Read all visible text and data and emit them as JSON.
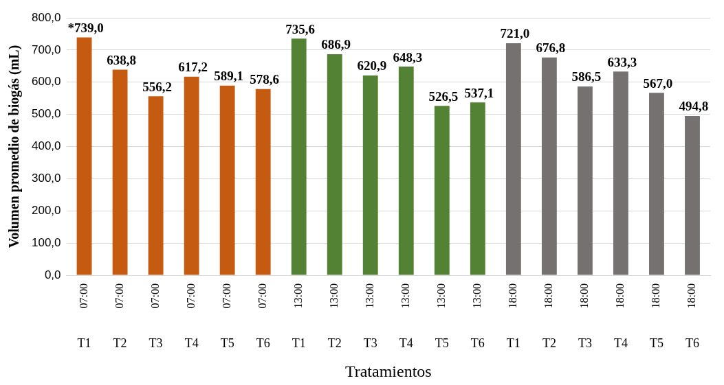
{
  "chart_data": {
    "type": "bar",
    "ylabel": "Volumen promedio de biogás (mL)",
    "xlabel": "Tratamientos",
    "categories": [
      "07:00\nT1",
      "07:00\nT2",
      "07:00\nT3",
      "07:00\nT4",
      "07:00\nT5",
      "07:00\nT6",
      "13:00\nT1",
      "13:00\nT2",
      "13:00\nT3",
      "13:00\nT4",
      "13:00\nT5",
      "13:00\nT6",
      "18:00\nT1",
      "18:00\nT2",
      "18:00\nT3",
      "18:00\nT4",
      "18:00\nT5",
      "18:00\nT6"
    ],
    "values": [
      739.0,
      638.8,
      556.2,
      617.2,
      589.1,
      578.6,
      735.6,
      686.9,
      620.9,
      648.3,
      526.5,
      537.1,
      721.0,
      676.8,
      586.5,
      633.3,
      567.0,
      494.8
    ],
    "value_labels": [
      "*739,0",
      "638,8",
      "556,2",
      "617,2",
      "589,1",
      "578,6",
      "735,6",
      "686,9",
      "620,9",
      "648,3",
      "526,5",
      "537,1",
      "721,0",
      "676,8",
      "586,5",
      "633,3",
      "567,0",
      "494,8"
    ],
    "colors": [
      "#c55a11",
      "#c55a11",
      "#c55a11",
      "#c55a11",
      "#c55a11",
      "#c55a11",
      "#548235",
      "#548235",
      "#548235",
      "#548235",
      "#548235",
      "#548235",
      "#767171",
      "#767171",
      "#767171",
      "#767171",
      "#767171",
      "#767171"
    ],
    "ylim": [
      0,
      800
    ],
    "yticks": [
      {
        "value": 0,
        "label": "0,0"
      },
      {
        "value": 100,
        "label": "100,0"
      },
      {
        "value": 200,
        "label": "200,0"
      },
      {
        "value": 300,
        "label": "300,0"
      },
      {
        "value": 400,
        "label": "400,0"
      },
      {
        "value": 500,
        "label": "500,0"
      },
      {
        "value": 600,
        "label": "600,0"
      },
      {
        "value": 700,
        "label": "700,0"
      },
      {
        "value": 800,
        "label": "800,0"
      }
    ],
    "grid": "y",
    "legend": false
  }
}
